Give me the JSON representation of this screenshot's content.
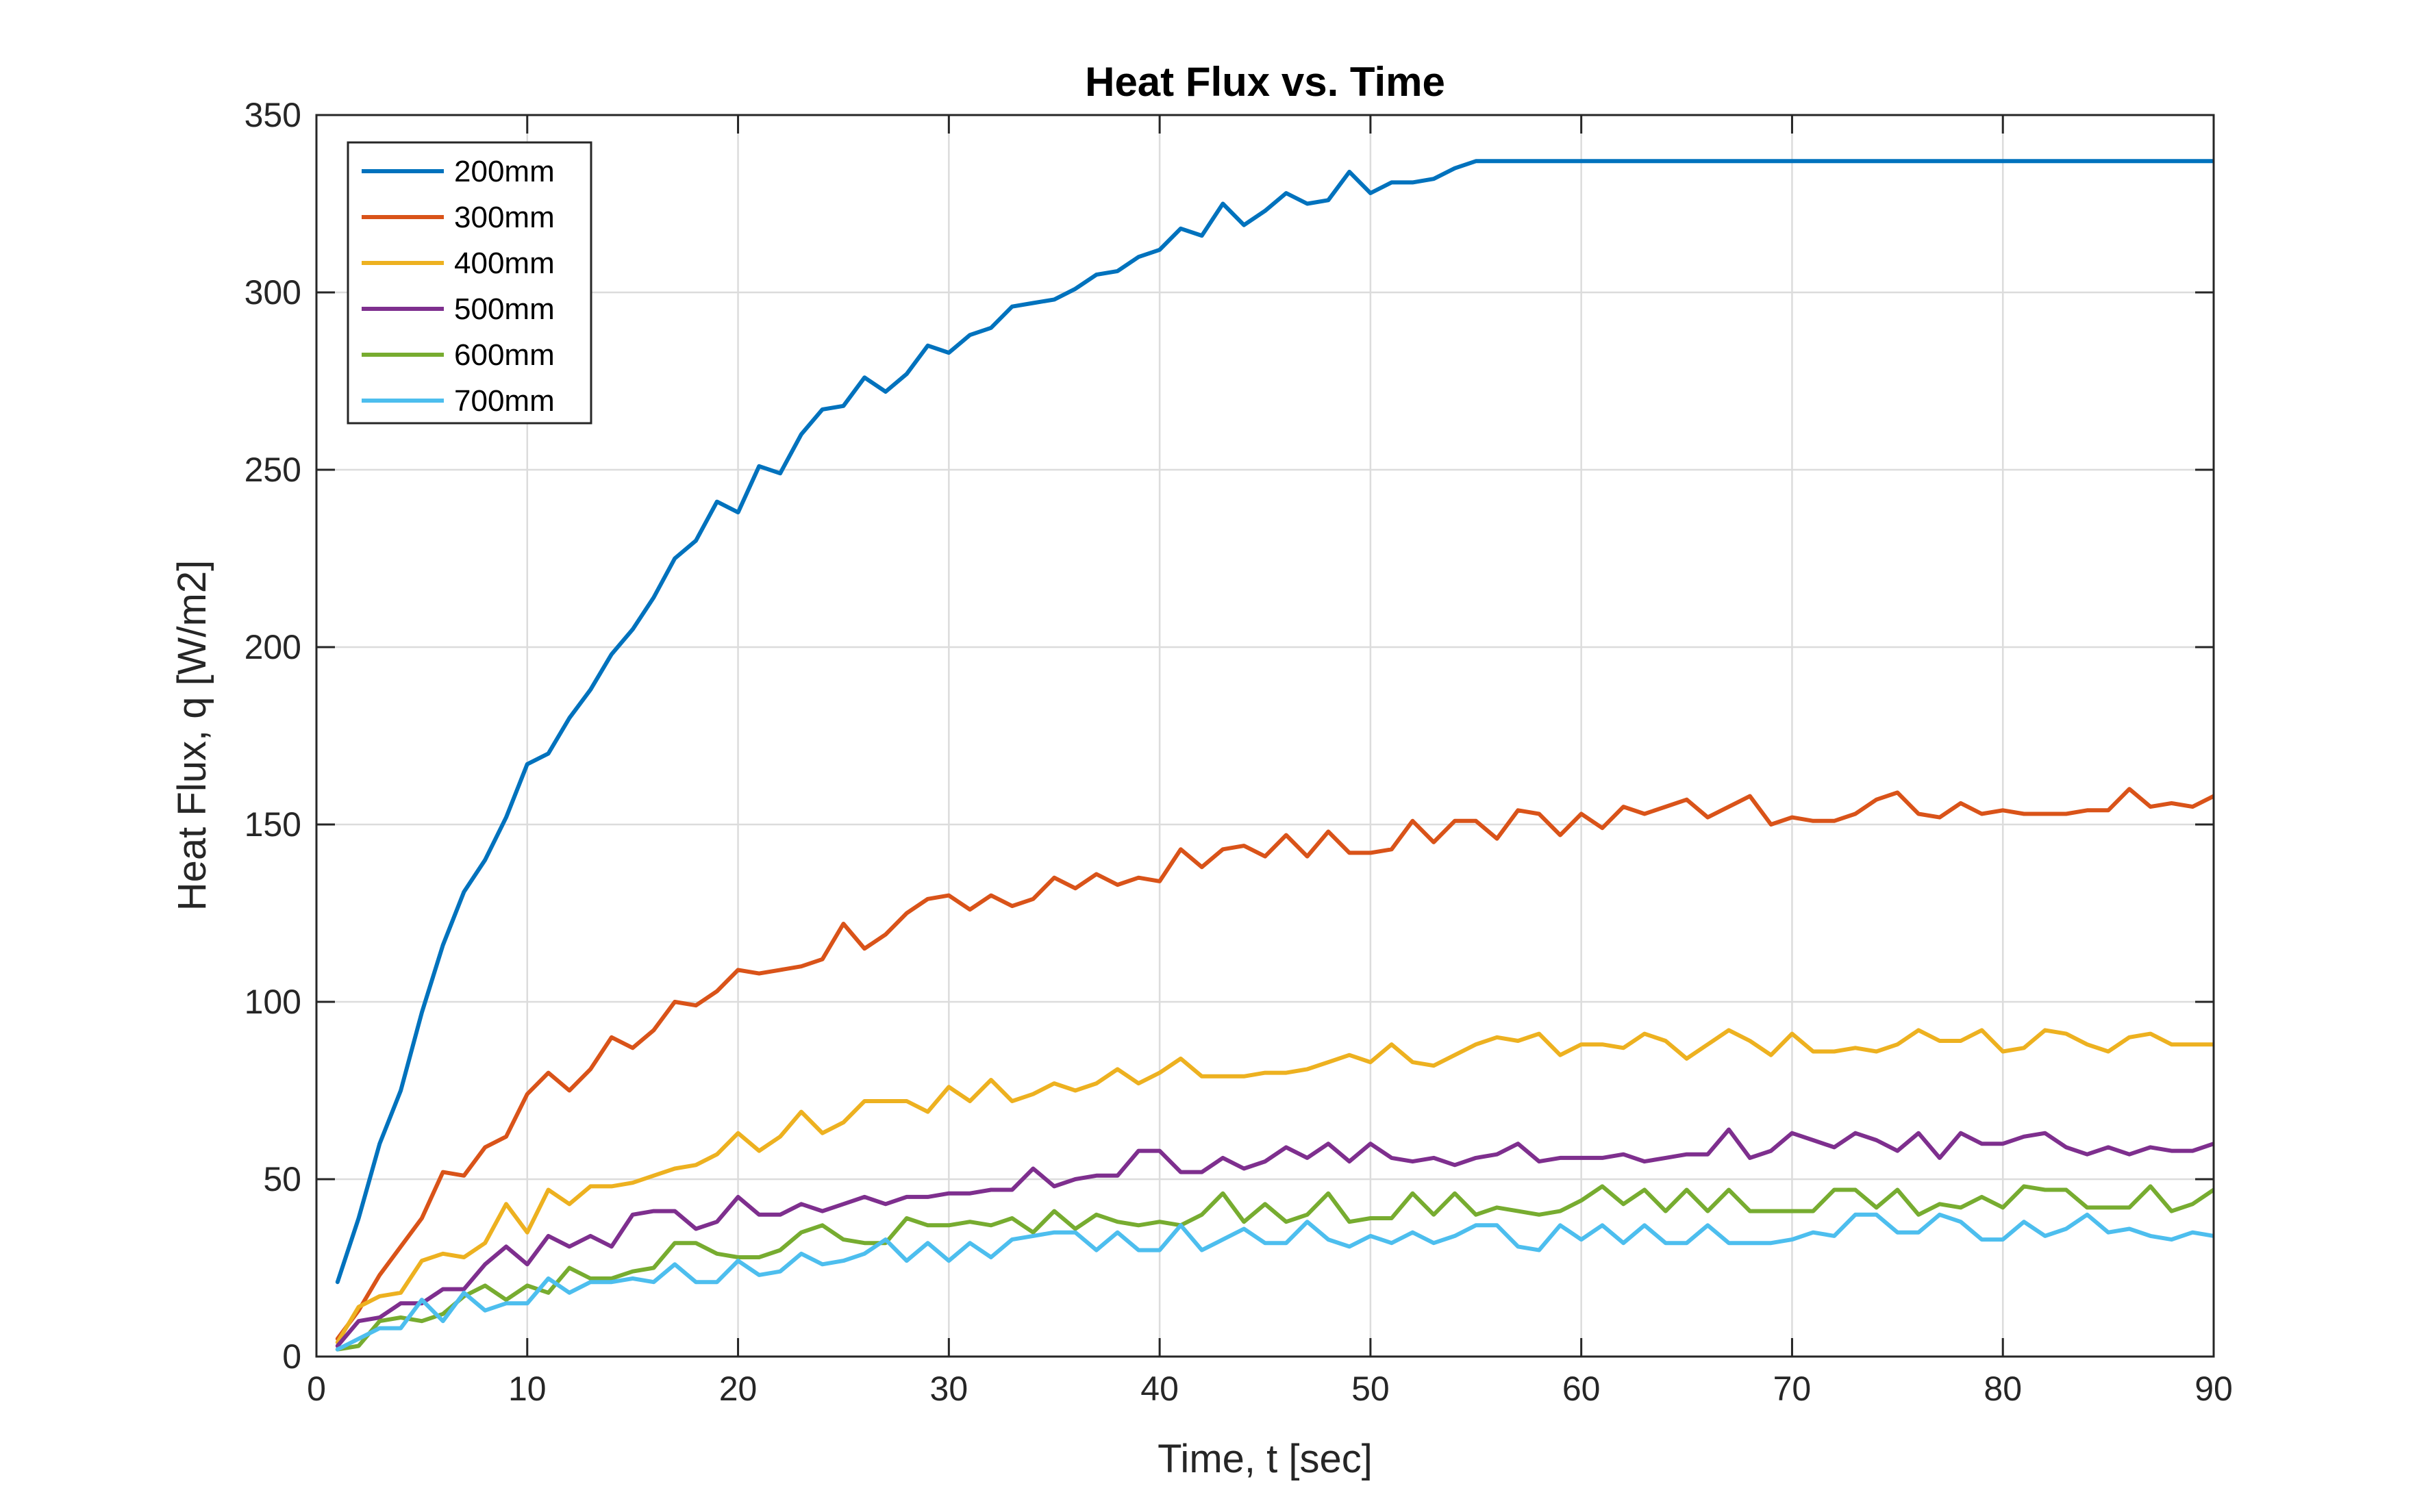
{
  "chart_data": {
    "type": "line",
    "title": "Heat Flux vs. Time",
    "xlabel": "Time, t [sec]",
    "ylabel": "Heat Flux, q [W/m2]",
    "xlim": [
      0,
      90
    ],
    "ylim": [
      0,
      350
    ],
    "xticks": [
      0,
      10,
      20,
      30,
      40,
      50,
      60,
      70,
      80,
      90
    ],
    "yticks": [
      0,
      50,
      100,
      150,
      200,
      250,
      300,
      350
    ],
    "grid": true,
    "legend_position": "top-left",
    "series": [
      {
        "name": "200mm",
        "color": "#0072BD",
        "x": [
          1,
          2,
          3,
          4,
          5,
          6,
          7,
          8,
          9,
          10,
          11,
          12,
          13,
          14,
          15,
          16,
          17,
          18,
          19,
          20,
          21,
          22,
          23,
          24,
          25,
          26,
          27,
          28,
          29,
          30,
          31,
          32,
          33,
          34,
          35,
          36,
          37,
          38,
          39,
          40,
          41,
          42,
          43,
          44,
          45,
          46,
          47,
          48,
          49,
          50,
          51,
          52,
          53,
          54,
          55,
          56,
          57,
          58,
          59,
          60,
          61,
          62,
          63,
          64,
          65,
          66,
          67,
          68,
          69,
          70,
          71,
          72,
          73,
          74,
          75,
          76,
          77,
          78,
          79,
          80,
          81,
          82,
          83,
          84,
          85,
          86,
          87,
          88,
          89,
          90
        ],
        "y": [
          21,
          39,
          60,
          75,
          97,
          116,
          131,
          140,
          152,
          167,
          170,
          180,
          188,
          198,
          205,
          214,
          225,
          230,
          241,
          238,
          251,
          249,
          260,
          267,
          268,
          276,
          272,
          277,
          285,
          283,
          288,
          290,
          296,
          297,
          298,
          301,
          305,
          306,
          310,
          312,
          318,
          316,
          325,
          319,
          323,
          328,
          325,
          326,
          334,
          328,
          331,
          331,
          332,
          335,
          337,
          337,
          337,
          337,
          337,
          337,
          337,
          337,
          337,
          337,
          337,
          337,
          337,
          337,
          337,
          337,
          337,
          337,
          337,
          337,
          337,
          337,
          337,
          337,
          337,
          337,
          337,
          337,
          337,
          337,
          337,
          337,
          337,
          337,
          337,
          337
        ]
      },
      {
        "name": "300mm",
        "color": "#D95319",
        "x": [
          1,
          2,
          3,
          4,
          5,
          6,
          7,
          8,
          9,
          10,
          11,
          12,
          13,
          14,
          15,
          16,
          17,
          18,
          19,
          20,
          21,
          22,
          23,
          24,
          25,
          26,
          27,
          28,
          29,
          30,
          31,
          32,
          33,
          34,
          35,
          36,
          37,
          38,
          39,
          40,
          41,
          42,
          43,
          44,
          45,
          46,
          47,
          48,
          49,
          50,
          51,
          52,
          53,
          54,
          55,
          56,
          57,
          58,
          59,
          60,
          61,
          62,
          63,
          64,
          65,
          66,
          67,
          68,
          69,
          70,
          71,
          72,
          73,
          74,
          75,
          76,
          77,
          78,
          79,
          80,
          81,
          82,
          83,
          84,
          85,
          86,
          87,
          88,
          89,
          90
        ],
        "y": [
          5,
          13,
          23,
          31,
          39,
          52,
          51,
          59,
          62,
          74,
          80,
          75,
          81,
          90,
          87,
          92,
          100,
          99,
          103,
          109,
          108,
          109,
          110,
          112,
          122,
          115,
          119,
          125,
          129,
          130,
          126,
          130,
          127,
          129,
          135,
          132,
          136,
          133,
          135,
          134,
          143,
          138,
          143,
          144,
          141,
          147,
          141,
          148,
          142,
          142,
          143,
          151,
          145,
          151,
          151,
          146,
          154,
          153,
          147,
          153,
          149,
          155,
          153,
          155,
          157,
          152,
          155,
          158,
          150,
          152,
          151,
          151,
          153,
          157,
          159,
          153,
          152,
          156,
          153,
          154,
          153,
          153,
          153,
          154,
          154,
          160,
          155,
          156,
          155,
          158
        ]
      },
      {
        "name": "400mm",
        "color": "#EDB120",
        "x": [
          1,
          2,
          3,
          4,
          5,
          6,
          7,
          8,
          9,
          10,
          11,
          12,
          13,
          14,
          15,
          16,
          17,
          18,
          19,
          20,
          21,
          22,
          23,
          24,
          25,
          26,
          27,
          28,
          29,
          30,
          31,
          32,
          33,
          34,
          35,
          36,
          37,
          38,
          39,
          40,
          41,
          42,
          43,
          44,
          45,
          46,
          47,
          48,
          49,
          50,
          51,
          52,
          53,
          54,
          55,
          56,
          57,
          58,
          59,
          60,
          61,
          62,
          63,
          64,
          65,
          66,
          67,
          68,
          69,
          70,
          71,
          72,
          73,
          74,
          75,
          76,
          77,
          78,
          79,
          80,
          81,
          82,
          83,
          84,
          85,
          86,
          87,
          88,
          89,
          90
        ],
        "y": [
          4,
          14,
          17,
          18,
          27,
          29,
          28,
          32,
          43,
          35,
          47,
          43,
          48,
          48,
          49,
          51,
          53,
          54,
          57,
          63,
          58,
          62,
          69,
          63,
          66,
          72,
          72,
          72,
          69,
          76,
          72,
          78,
          72,
          74,
          77,
          75,
          77,
          81,
          77,
          80,
          84,
          79,
          79,
          79,
          80,
          80,
          81,
          83,
          85,
          83,
          88,
          83,
          82,
          85,
          88,
          90,
          89,
          91,
          85,
          88,
          88,
          87,
          91,
          89,
          84,
          88,
          92,
          89,
          85,
          91,
          86,
          86,
          87,
          86,
          88,
          92,
          89,
          89,
          92,
          86,
          87,
          92,
          91,
          88,
          86,
          90,
          91,
          88,
          88,
          88
        ]
      },
      {
        "name": "500mm",
        "color": "#7E2F8E",
        "x": [
          1,
          2,
          3,
          4,
          5,
          6,
          7,
          8,
          9,
          10,
          11,
          12,
          13,
          14,
          15,
          16,
          17,
          18,
          19,
          20,
          21,
          22,
          23,
          24,
          25,
          26,
          27,
          28,
          29,
          30,
          31,
          32,
          33,
          34,
          35,
          36,
          37,
          38,
          39,
          40,
          41,
          42,
          43,
          44,
          45,
          46,
          47,
          48,
          49,
          50,
          51,
          52,
          53,
          54,
          55,
          56,
          57,
          58,
          59,
          60,
          61,
          62,
          63,
          64,
          65,
          66,
          67,
          68,
          69,
          70,
          71,
          72,
          73,
          74,
          75,
          76,
          77,
          78,
          79,
          80,
          81,
          82,
          83,
          84,
          85,
          86,
          87,
          88,
          89,
          90
        ],
        "y": [
          3,
          10,
          11,
          15,
          15,
          19,
          19,
          26,
          31,
          26,
          34,
          31,
          34,
          31,
          40,
          41,
          41,
          36,
          38,
          45,
          40,
          40,
          43,
          41,
          43,
          45,
          43,
          45,
          45,
          46,
          46,
          47,
          47,
          53,
          48,
          50,
          51,
          51,
          58,
          58,
          52,
          52,
          56,
          53,
          55,
          59,
          56,
          60,
          55,
          60,
          56,
          55,
          56,
          54,
          56,
          57,
          60,
          55,
          56,
          56,
          56,
          57,
          55,
          56,
          57,
          57,
          64,
          56,
          58,
          63,
          61,
          59,
          63,
          61,
          58,
          63,
          56,
          63,
          60,
          60,
          62,
          63,
          59,
          57,
          59,
          57,
          59,
          58,
          58,
          60
        ]
      },
      {
        "name": "600mm",
        "color": "#77AC30",
        "x": [
          1,
          2,
          3,
          4,
          5,
          6,
          7,
          8,
          9,
          10,
          11,
          12,
          13,
          14,
          15,
          16,
          17,
          18,
          19,
          20,
          21,
          22,
          23,
          24,
          25,
          26,
          27,
          28,
          29,
          30,
          31,
          32,
          33,
          34,
          35,
          36,
          37,
          38,
          39,
          40,
          41,
          42,
          43,
          44,
          45,
          46,
          47,
          48,
          49,
          50,
          51,
          52,
          53,
          54,
          55,
          56,
          57,
          58,
          59,
          60,
          61,
          62,
          63,
          64,
          65,
          66,
          67,
          68,
          69,
          70,
          71,
          72,
          73,
          74,
          75,
          76,
          77,
          78,
          79,
          80,
          81,
          82,
          83,
          84,
          85,
          86,
          87,
          88,
          89,
          90
        ],
        "y": [
          2,
          3,
          10,
          11,
          10,
          12,
          17,
          20,
          16,
          20,
          18,
          25,
          22,
          22,
          24,
          25,
          32,
          32,
          29,
          28,
          28,
          30,
          35,
          37,
          33,
          32,
          32,
          39,
          37,
          37,
          38,
          37,
          39,
          35,
          41,
          36,
          40,
          38,
          37,
          38,
          37,
          40,
          46,
          38,
          43,
          38,
          40,
          46,
          38,
          39,
          39,
          46,
          40,
          46,
          40,
          42,
          41,
          40,
          41,
          44,
          48,
          43,
          47,
          41,
          47,
          41,
          47,
          41,
          41,
          41,
          41,
          47,
          47,
          42,
          47,
          40,
          43,
          42,
          45,
          42,
          48,
          47,
          47,
          42,
          42,
          42,
          48,
          41,
          43,
          47
        ]
      },
      {
        "name": "700mm",
        "color": "#4DBEEE",
        "x": [
          1,
          2,
          3,
          4,
          5,
          6,
          7,
          8,
          9,
          10,
          11,
          12,
          13,
          14,
          15,
          16,
          17,
          18,
          19,
          20,
          21,
          22,
          23,
          24,
          25,
          26,
          27,
          28,
          29,
          30,
          31,
          32,
          33,
          34,
          35,
          36,
          37,
          38,
          39,
          40,
          41,
          42,
          43,
          44,
          45,
          46,
          47,
          48,
          49,
          50,
          51,
          52,
          53,
          54,
          55,
          56,
          57,
          58,
          59,
          60,
          61,
          62,
          63,
          64,
          65,
          66,
          67,
          68,
          69,
          70,
          71,
          72,
          73,
          74,
          75,
          76,
          77,
          78,
          79,
          80,
          81,
          82,
          83,
          84,
          85,
          86,
          87,
          88,
          89,
          90
        ],
        "y": [
          2,
          5,
          8,
          8,
          16,
          10,
          18,
          13,
          15,
          15,
          22,
          18,
          21,
          21,
          22,
          21,
          26,
          21,
          21,
          27,
          23,
          24,
          29,
          26,
          27,
          29,
          33,
          27,
          32,
          27,
          32,
          28,
          33,
          34,
          35,
          35,
          30,
          35,
          30,
          30,
          37,
          30,
          33,
          36,
          32,
          32,
          38,
          33,
          31,
          34,
          32,
          35,
          32,
          34,
          37,
          37,
          31,
          30,
          37,
          33,
          37,
          32,
          37,
          32,
          32,
          37,
          32,
          32,
          32,
          33,
          35,
          34,
          40,
          40,
          35,
          35,
          40,
          38,
          33,
          33,
          38,
          34,
          36,
          40,
          35,
          36,
          34,
          33,
          35,
          34
        ]
      }
    ]
  }
}
